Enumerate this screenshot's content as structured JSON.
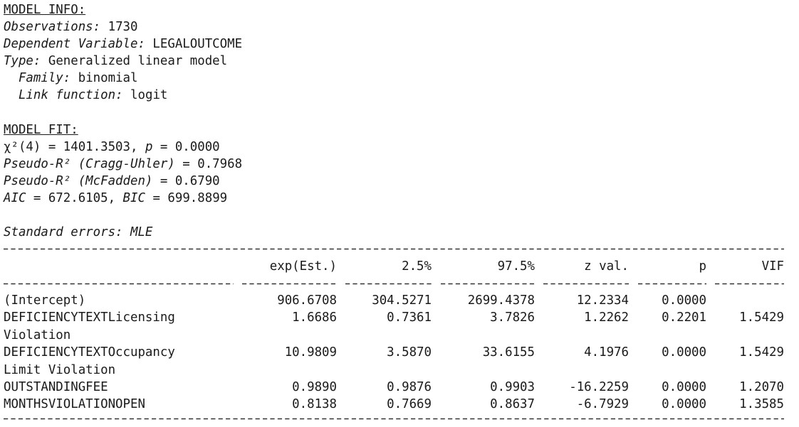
{
  "model_info": {
    "heading": "MODEL INFO:",
    "observations_label": "Observations:",
    "observations_value": "1730",
    "dependent_label": "Dependent Variable:",
    "dependent_value": "LEGALOUTCOME",
    "type_label": "Type:",
    "type_value": "Generalized linear model",
    "family_label": "Family:",
    "family_value": "binomial",
    "link_label": "Link function:",
    "link_value": "logit"
  },
  "model_fit": {
    "heading": "MODEL FIT:",
    "chi_prefix": "χ²(4) = 1401.3503, ",
    "p_label": "p",
    "chi_suffix": " = 0.0000",
    "cragg_label": "Pseudo-R² (Cragg-Uhler)",
    "cragg_value": " = 0.7968",
    "mcf_label": "Pseudo-R² (McFadden)",
    "mcf_value": " = 0.6790",
    "aic_label": "AIC",
    "aic_value": " = 672.6105, ",
    "bic_label": "BIC",
    "bic_value": " = 699.8899"
  },
  "standard_errors": "Standard errors: MLE",
  "table": {
    "headers": [
      "exp(Est.)",
      "2.5%",
      "97.5%",
      "z val.",
      "p",
      "VIF"
    ],
    "rows": [
      {
        "term": [
          "(Intercept)"
        ],
        "values": [
          "906.6708",
          "304.5271",
          "2699.4378",
          "12.2334",
          "0.0000",
          ""
        ]
      },
      {
        "term": [
          "DEFICIENCYTEXTLicensing",
          "Violation"
        ],
        "values": [
          "1.6686",
          "0.7361",
          "3.7826",
          "1.2262",
          "0.2201",
          "1.5429"
        ]
      },
      {
        "term": [
          "DEFICIENCYTEXTOccupancy",
          "Limit Violation"
        ],
        "values": [
          "10.9809",
          "3.5870",
          "33.6155",
          "4.1976",
          "0.0000",
          "1.5429"
        ]
      },
      {
        "term": [
          "OUTSTANDINGFEE"
        ],
        "values": [
          "0.9890",
          "0.9876",
          "0.9903",
          "-16.2259",
          "0.0000",
          "1.2070"
        ]
      },
      {
        "term": [
          "MONTHSVIOLATIONOPEN"
        ],
        "values": [
          "0.8138",
          "0.7669",
          "0.8637",
          "-6.7929",
          "0.0000",
          "1.3585"
        ]
      }
    ]
  }
}
